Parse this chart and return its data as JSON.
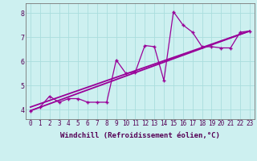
{
  "xlabel": "Windchill (Refroidissement éolien,°C)",
  "bg_color": "#cdf0f0",
  "plot_bg_color": "#cdf0f0",
  "grid_color": "#aadddd",
  "line_color": "#990099",
  "spine_color": "#777777",
  "x_data": [
    0,
    1,
    2,
    3,
    4,
    5,
    6,
    7,
    8,
    9,
    10,
    11,
    12,
    13,
    14,
    15,
    16,
    17,
    18,
    19,
    20,
    21,
    22,
    23
  ],
  "y_jagged": [
    3.95,
    4.1,
    4.55,
    4.3,
    4.45,
    4.45,
    4.3,
    4.3,
    4.3,
    6.05,
    5.5,
    5.55,
    6.65,
    6.6,
    5.2,
    8.05,
    7.5,
    7.2,
    6.6,
    6.6,
    6.55,
    6.55,
    7.2,
    7.25
  ],
  "trend1_x": [
    0,
    23
  ],
  "trend1_y": [
    3.95,
    7.25
  ],
  "trend2_x": [
    0,
    23
  ],
  "trend2_y": [
    4.1,
    7.25
  ],
  "xlim": [
    -0.5,
    23.5
  ],
  "ylim": [
    3.6,
    8.4
  ],
  "xticks": [
    0,
    1,
    2,
    3,
    4,
    5,
    6,
    7,
    8,
    9,
    10,
    11,
    12,
    13,
    14,
    15,
    16,
    17,
    18,
    19,
    20,
    21,
    22,
    23
  ],
  "yticks": [
    4,
    5,
    6,
    7,
    8
  ],
  "xlabel_fontsize": 6.5,
  "tick_fontsize": 5.5,
  "label_color": "#550055"
}
